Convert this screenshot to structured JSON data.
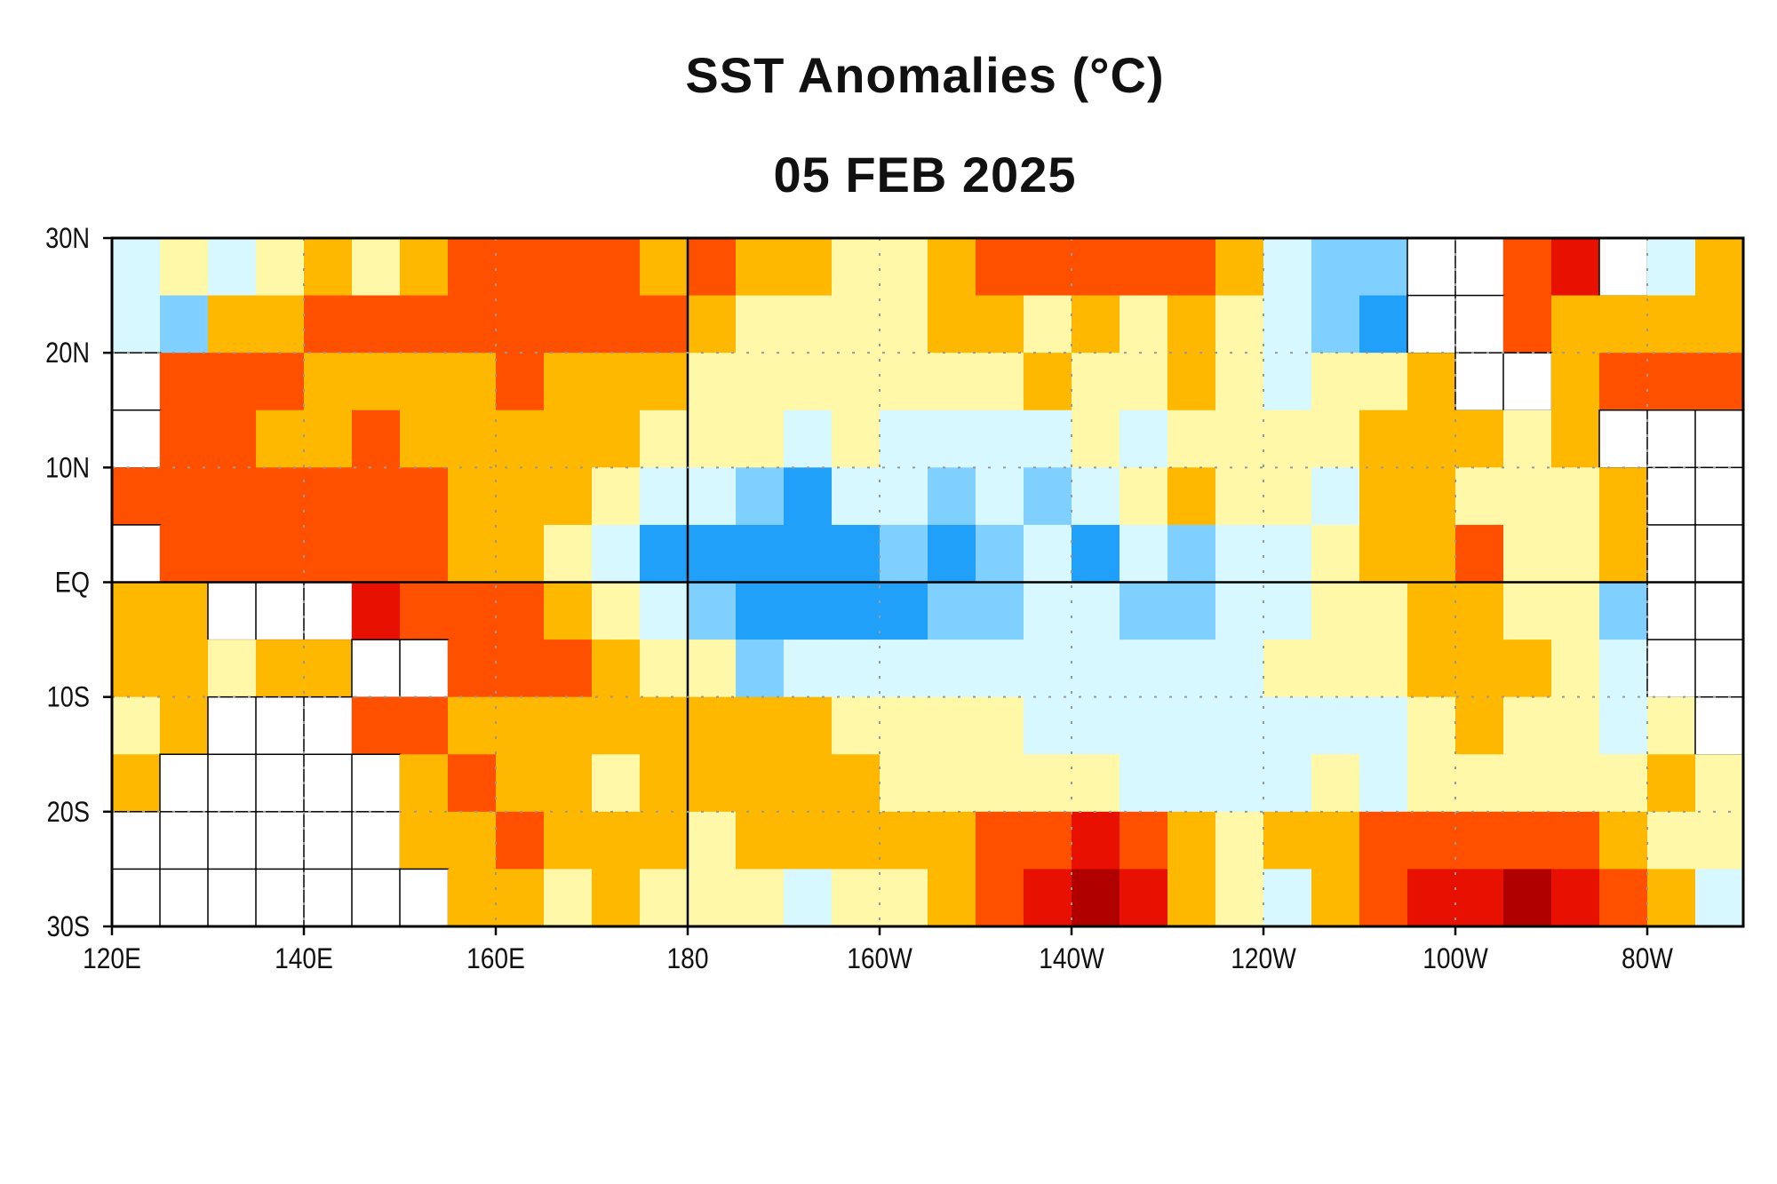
{
  "chart_data": {
    "type": "heatmap",
    "title": "SST Anomalies (°C)",
    "subtitle": "05 FEB 2025",
    "xlabel": "",
    "ylabel": "",
    "x_ticks": [
      "120E",
      "140E",
      "160E",
      "180",
      "160W",
      "140W",
      "120W",
      "100W",
      "80W"
    ],
    "y_ticks": [
      "30N",
      "20N",
      "10N",
      "EQ",
      "10S",
      "20S",
      "30S"
    ],
    "lon_range": [
      120,
      290
    ],
    "lat_range": [
      30,
      -30
    ],
    "cell_degrees": 5,
    "grid": true,
    "land_value": null,
    "levels": [
      {
        "value": -1.5,
        "color": "#20a0f8"
      },
      {
        "value": -1,
        "color": "#80d0ff"
      },
      {
        "value": -0.3,
        "color": "#d8f8ff"
      },
      {
        "value": 0.3,
        "color": "#fff8a8"
      },
      {
        "value": 0.8,
        "color": "#ffb800"
      },
      {
        "value": 1.5,
        "color": "#ff5000"
      },
      {
        "value": 2.5,
        "color": "#e81000"
      },
      {
        "value": 3.5,
        "color": "#b00000"
      }
    ],
    "rows": [
      [
        -0.3,
        0.3,
        -0.3,
        0.3,
        0.8,
        0.3,
        0.8,
        1.5,
        1.5,
        1.5,
        1.5,
        0.8,
        1.5,
        0.8,
        0.8,
        0.3,
        0.3,
        0.8,
        1.5,
        1.5,
        1.5,
        1.5,
        1.5,
        0.8,
        -0.3,
        -1,
        -1,
        null,
        null,
        1.5,
        2.5,
        null,
        -0.3,
        0.8
      ],
      [
        -0.3,
        -1,
        0.8,
        0.8,
        1.5,
        1.5,
        1.5,
        1.5,
        1.5,
        1.5,
        1.5,
        1.5,
        0.8,
        0.3,
        0.3,
        0.3,
        0.3,
        0.8,
        0.8,
        0.3,
        0.8,
        0.3,
        0.8,
        0.3,
        -0.3,
        -1,
        -1.5,
        null,
        null,
        1.5,
        0.8,
        0.8,
        0.8,
        0.8
      ],
      [
        null,
        1.5,
        1.5,
        1.5,
        0.8,
        0.8,
        0.8,
        0.8,
        1.5,
        0.8,
        0.8,
        0.8,
        0.3,
        0.3,
        0.3,
        0.3,
        0.3,
        0.3,
        0.3,
        0.8,
        0.3,
        0.3,
        0.8,
        0.3,
        -0.3,
        0.3,
        0.3,
        0.8,
        null,
        null,
        0.8,
        1.5,
        1.5,
        1.5
      ],
      [
        null,
        1.5,
        1.5,
        0.8,
        0.8,
        1.5,
        0.8,
        0.8,
        0.8,
        0.8,
        0.8,
        0.3,
        0.3,
        0.3,
        -0.3,
        0.3,
        -0.3,
        -0.3,
        -0.3,
        -0.3,
        0.3,
        -0.3,
        0.3,
        0.3,
        0.3,
        0.3,
        0.8,
        0.8,
        0.8,
        0.3,
        0.8,
        null,
        null,
        null
      ],
      [
        1.5,
        1.5,
        1.5,
        1.5,
        1.5,
        1.5,
        1.5,
        0.8,
        0.8,
        0.8,
        0.3,
        -0.3,
        -0.3,
        -1,
        -1.5,
        -0.3,
        -0.3,
        -1,
        -0.3,
        -1,
        -0.3,
        0.3,
        0.8,
        0.3,
        0.3,
        -0.3,
        0.8,
        0.8,
        0.3,
        0.3,
        0.3,
        0.8,
        null,
        null
      ],
      [
        null,
        1.5,
        1.5,
        1.5,
        1.5,
        1.5,
        1.5,
        0.8,
        0.8,
        0.3,
        -0.3,
        -1.5,
        -1.5,
        -1.5,
        -1.5,
        -1.5,
        -1,
        -1.5,
        -1,
        -0.3,
        -1.5,
        -0.3,
        -1,
        -0.3,
        -0.3,
        0.3,
        0.8,
        0.8,
        1.5,
        0.3,
        0.3,
        0.8,
        null,
        null
      ],
      [
        0.8,
        0.8,
        null,
        null,
        null,
        2.5,
        1.5,
        1.5,
        1.5,
        0.8,
        0.3,
        -0.3,
        -1,
        -1.5,
        -1.5,
        -1.5,
        -1.5,
        -1,
        -1,
        -0.3,
        -0.3,
        -1,
        -1,
        -0.3,
        -0.3,
        0.3,
        0.3,
        0.8,
        0.8,
        0.3,
        0.3,
        -1,
        null,
        null
      ],
      [
        0.8,
        0.8,
        0.3,
        0.8,
        0.8,
        null,
        null,
        1.5,
        1.5,
        1.5,
        0.8,
        0.3,
        0.3,
        -1,
        -0.3,
        -0.3,
        -0.3,
        -0.3,
        -0.3,
        -0.3,
        -0.3,
        -0.3,
        -0.3,
        -0.3,
        0.3,
        0.3,
        0.3,
        0.8,
        0.8,
        0.8,
        0.3,
        -0.3,
        null,
        null
      ],
      [
        0.3,
        0.8,
        null,
        null,
        null,
        1.5,
        1.5,
        0.8,
        0.8,
        0.8,
        0.8,
        0.8,
        0.8,
        0.8,
        0.8,
        0.3,
        0.3,
        0.3,
        0.3,
        -0.3,
        -0.3,
        -0.3,
        -0.3,
        -0.3,
        -0.3,
        -0.3,
        -0.3,
        0.3,
        0.8,
        0.3,
        0.3,
        -0.3,
        0.3,
        null
      ],
      [
        0.8,
        null,
        null,
        null,
        null,
        null,
        0.8,
        1.5,
        0.8,
        0.8,
        0.3,
        0.8,
        0.8,
        0.8,
        0.8,
        0.8,
        0.3,
        0.3,
        0.3,
        0.3,
        0.3,
        -0.3,
        -0.3,
        -0.3,
        -0.3,
        0.3,
        -0.3,
        0.3,
        0.3,
        0.3,
        0.3,
        0.3,
        0.8,
        0.3
      ],
      [
        null,
        null,
        null,
        null,
        null,
        null,
        0.8,
        0.8,
        1.5,
        0.8,
        0.8,
        0.8,
        0.3,
        0.8,
        0.8,
        0.8,
        0.8,
        0.8,
        1.5,
        1.5,
        2.5,
        1.5,
        0.8,
        0.3,
        0.8,
        0.8,
        1.5,
        1.5,
        1.5,
        1.5,
        1.5,
        0.8,
        0.3,
        0.3
      ],
      [
        null,
        null,
        null,
        null,
        null,
        null,
        null,
        0.8,
        0.8,
        0.3,
        0.8,
        0.3,
        0.3,
        0.3,
        -0.3,
        0.3,
        0.3,
        0.8,
        1.5,
        2.5,
        3.5,
        2.5,
        0.8,
        0.3,
        -0.3,
        0.8,
        1.5,
        2.5,
        2.5,
        3.5,
        2.5,
        1.5,
        0.8,
        -0.3
      ]
    ]
  }
}
